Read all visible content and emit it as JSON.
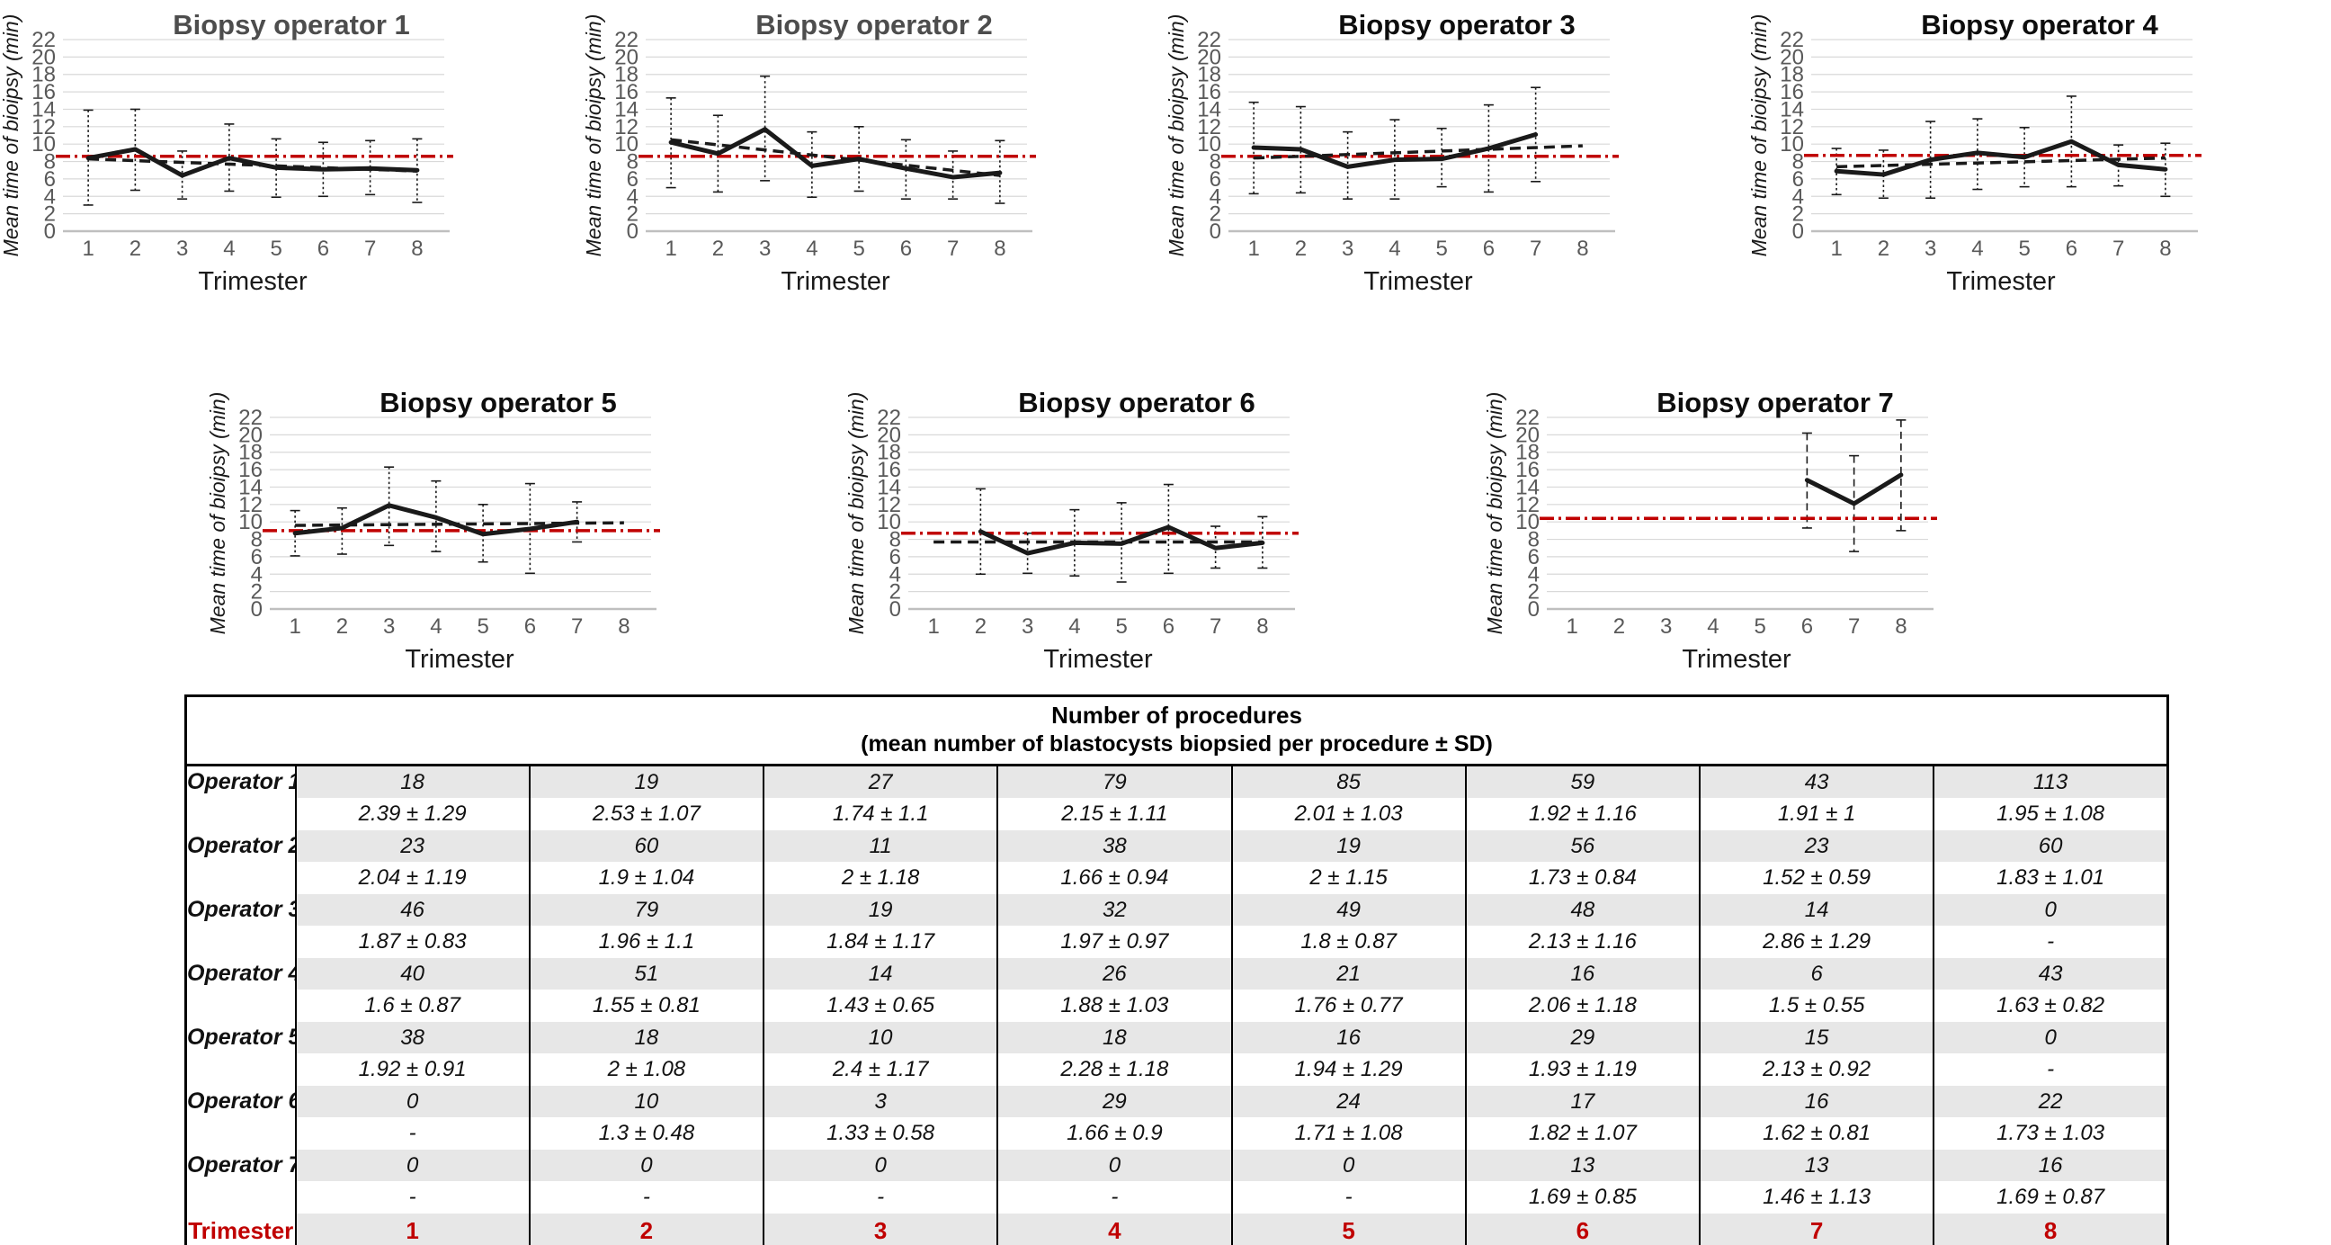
{
  "colors": {
    "ref_line": "#c00000",
    "series": "#1a1a1a",
    "grid": "#d9d9d9",
    "axis_line": "#bfbfbf",
    "tick_label": "#595959",
    "title_gray": "#4d4d4d",
    "title_black": "#0d0d0d",
    "table_stripe": "#e7e7e7",
    "trimester_red": "#c00000"
  },
  "chart_data": [
    {
      "type": "line",
      "title": "Biopsy operator 1",
      "title_color": "#4d4d4d",
      "xlabel": "Trimester",
      "ylabel": "Mean time of bioipsy (min)",
      "x": [
        1,
        2,
        3,
        4,
        5,
        6,
        7,
        8
      ],
      "ylim": [
        0,
        22
      ],
      "ytick_step": 2,
      "grid": true,
      "mean": [
        8.4,
        9.4,
        6.4,
        8.4,
        7.3,
        7.1,
        7.2,
        7.0
      ],
      "err_low": [
        3.0,
        4.7,
        3.7,
        4.6,
        3.9,
        4.0,
        4.2,
        3.3
      ],
      "err_high": [
        13.9,
        14.0,
        9.2,
        12.3,
        10.6,
        10.2,
        10.4,
        10.6
      ],
      "trend": [
        8.3,
        6.9
      ],
      "ref_line": 8.6,
      "err_style": "dotted"
    },
    {
      "type": "line",
      "title": "Biopsy operator 2",
      "title_color": "#4d4d4d",
      "xlabel": "Trimester",
      "ylabel": "Mean time of bioipsy (min)",
      "x": [
        1,
        2,
        3,
        4,
        5,
        6,
        7,
        8
      ],
      "ylim": [
        0,
        22
      ],
      "ytick_step": 2,
      "grid": true,
      "mean": [
        10.2,
        8.9,
        11.7,
        7.5,
        8.3,
        7.2,
        6.2,
        6.7
      ],
      "err_low": [
        5.0,
        4.5,
        5.8,
        3.9,
        4.6,
        3.7,
        3.7,
        3.2
      ],
      "err_high": [
        15.3,
        13.3,
        17.8,
        11.4,
        12.0,
        10.5,
        9.2,
        10.4
      ],
      "trend": [
        10.5,
        6.4
      ],
      "ref_line": 8.6,
      "err_style": "dotted"
    },
    {
      "type": "line",
      "title": "Biopsy operator 3",
      "title_color": "#0d0d0d",
      "xlabel": "Trimester",
      "ylabel": "Mean time of bioipsy (min)",
      "x": [
        1,
        2,
        3,
        4,
        5,
        6,
        7,
        8
      ],
      "ylim": [
        0,
        22
      ],
      "ytick_step": 2,
      "grid": true,
      "mean": [
        9.6,
        9.4,
        7.4,
        8.2,
        8.3,
        9.5,
        11.1,
        null
      ],
      "err_low": [
        4.3,
        4.4,
        3.7,
        3.7,
        5.1,
        4.5,
        5.7,
        null
      ],
      "err_high": [
        14.8,
        14.3,
        11.4,
        12.8,
        11.8,
        14.5,
        16.5,
        null
      ],
      "trend": [
        8.4,
        9.8
      ],
      "ref_line": 8.6,
      "err_style": "dotted"
    },
    {
      "type": "line",
      "title": "Biopsy operator 4",
      "title_color": "#0d0d0d",
      "xlabel": "Trimester",
      "ylabel": "Mean time of bioipsy (min)",
      "x": [
        1,
        2,
        3,
        4,
        5,
        6,
        7,
        8
      ],
      "ylim": [
        0,
        22
      ],
      "ytick_step": 2,
      "grid": true,
      "mean": [
        6.9,
        6.5,
        8.2,
        9.0,
        8.5,
        10.3,
        7.6,
        7.1
      ],
      "err_low": [
        4.2,
        3.8,
        3.8,
        4.8,
        5.1,
        5.1,
        5.2,
        4.0
      ],
      "err_high": [
        9.5,
        9.3,
        12.6,
        12.9,
        11.9,
        15.5,
        9.9,
        10.1
      ],
      "trend": [
        7.4,
        8.4
      ],
      "ref_line": 8.7,
      "err_style": "dotted"
    },
    {
      "type": "line",
      "title": "Biopsy operator 5",
      "title_color": "#0d0d0d",
      "xlabel": "Trimester",
      "ylabel": "Mean time of bioipsy (min)",
      "x": [
        1,
        2,
        3,
        4,
        5,
        6,
        7,
        8
      ],
      "ylim": [
        0,
        22
      ],
      "ytick_step": 2,
      "grid": true,
      "mean": [
        8.7,
        9.3,
        11.9,
        10.5,
        8.6,
        9.2,
        10.0,
        null
      ],
      "err_low": [
        6.1,
        6.3,
        7.3,
        6.6,
        5.4,
        4.1,
        7.7,
        null
      ],
      "err_high": [
        11.3,
        11.6,
        16.3,
        14.7,
        12.0,
        14.4,
        12.3,
        null
      ],
      "trend": [
        9.6,
        9.9
      ],
      "ref_line": 9.0,
      "err_style": "dotted"
    },
    {
      "type": "line",
      "title": "Biopsy operator 6",
      "title_color": "#0d0d0d",
      "xlabel": "Trimester",
      "ylabel": "Mean time of bioipsy (min)",
      "x": [
        1,
        2,
        3,
        4,
        5,
        6,
        7,
        8
      ],
      "ylim": [
        0,
        22
      ],
      "ytick_step": 2,
      "grid": true,
      "mean": [
        null,
        8.9,
        6.4,
        7.6,
        7.5,
        9.4,
        7.0,
        7.6
      ],
      "err_low": [
        null,
        4.0,
        4.1,
        3.8,
        3.1,
        4.1,
        4.7,
        4.7
      ],
      "err_high": [
        null,
        13.8,
        8.7,
        11.4,
        12.2,
        14.3,
        9.5,
        10.6
      ],
      "trend": [
        7.7,
        7.7
      ],
      "ref_line": 8.7,
      "err_style": "dotted"
    },
    {
      "type": "line",
      "title": "Biopsy operator 7",
      "title_color": "#0d0d0d",
      "xlabel": "Trimester",
      "ylabel": "Mean time of bioipsy (min)",
      "x": [
        1,
        2,
        3,
        4,
        5,
        6,
        7,
        8
      ],
      "ylim": [
        0,
        22
      ],
      "ytick_step": 2,
      "grid": true,
      "mean": [
        null,
        null,
        null,
        null,
        null,
        14.8,
        12.1,
        15.4
      ],
      "err_low": [
        null,
        null,
        null,
        null,
        null,
        9.3,
        6.6,
        9.0
      ],
      "err_high": [
        null,
        null,
        null,
        null,
        null,
        20.2,
        17.6,
        21.7
      ],
      "trend": null,
      "ref_line": 10.4,
      "err_style": "dashed"
    }
  ],
  "table": {
    "header_line1": "Number of procedures",
    "header_line2": "(mean number of blastocysts biopsied per procedure ± SD)",
    "rows": [
      {
        "label": "Operator 1",
        "counts": [
          "18",
          "19",
          "27",
          "79",
          "85",
          "59",
          "43",
          "113"
        ],
        "means": [
          "2.39 ± 1.29",
          "2.53 ± 1.07",
          "1.74 ± 1.1",
          "2.15 ± 1.11",
          "2.01 ± 1.03",
          "1.92 ± 1.16",
          "1.91 ± 1",
          "1.95 ± 1.08"
        ]
      },
      {
        "label": "Operator 2",
        "counts": [
          "23",
          "60",
          "11",
          "38",
          "19",
          "56",
          "23",
          "60"
        ],
        "means": [
          "2.04 ± 1.19",
          "1.9 ± 1.04",
          "2 ± 1.18",
          "1.66 ± 0.94",
          "2 ± 1.15",
          "1.73 ± 0.84",
          "1.52 ± 0.59",
          "1.83 ± 1.01"
        ]
      },
      {
        "label": "Operator 3",
        "counts": [
          "46",
          "79",
          "19",
          "32",
          "49",
          "48",
          "14",
          "0"
        ],
        "means": [
          "1.87 ± 0.83",
          "1.96 ± 1.1",
          "1.84 ± 1.17",
          "1.97 ± 0.97",
          "1.8 ± 0.87",
          "2.13 ± 1.16",
          "2.86 ± 1.29",
          "-"
        ]
      },
      {
        "label": "Operator 4",
        "counts": [
          "40",
          "51",
          "14",
          "26",
          "21",
          "16",
          "6",
          "43"
        ],
        "means": [
          "1.6 ± 0.87",
          "1.55 ± 0.81",
          "1.43 ± 0.65",
          "1.88 ± 1.03",
          "1.76 ± 0.77",
          "2.06 ± 1.18",
          "1.5 ± 0.55",
          "1.63 ± 0.82"
        ]
      },
      {
        "label": "Operator 5",
        "counts": [
          "38",
          "18",
          "10",
          "18",
          "16",
          "29",
          "15",
          "0"
        ],
        "means": [
          "1.92 ± 0.91",
          "2 ± 1.08",
          "2.4 ± 1.17",
          "2.28 ± 1.18",
          "1.94 ± 1.29",
          "1.93 ± 1.19",
          "2.13 ± 0.92",
          "-"
        ]
      },
      {
        "label": "Operator 6",
        "counts": [
          "0",
          "10",
          "3",
          "29",
          "24",
          "17",
          "16",
          "22"
        ],
        "means": [
          "-",
          "1.3 ± 0.48",
          "1.33 ± 0.58",
          "1.66 ± 0.9",
          "1.71 ± 1.08",
          "1.82 ± 1.07",
          "1.62 ± 0.81",
          "1.73 ± 1.03"
        ]
      },
      {
        "label": "Operator 7",
        "counts": [
          "0",
          "0",
          "0",
          "0",
          "0",
          "13",
          "13",
          "16"
        ],
        "means": [
          "-",
          "-",
          "-",
          "-",
          "-",
          "1.69 ± 0.85",
          "1.46 ± 1.13",
          "1.69 ± 0.87"
        ]
      }
    ],
    "footer": {
      "label": "Trimester",
      "values": [
        "1",
        "2",
        "3",
        "4",
        "5",
        "6",
        "7",
        "8"
      ]
    }
  }
}
